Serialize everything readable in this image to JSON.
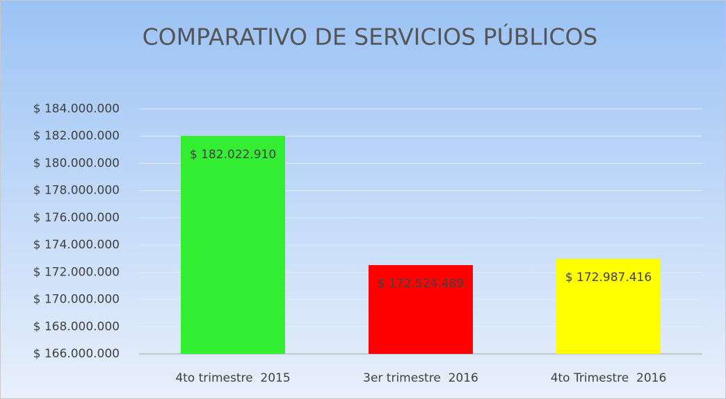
{
  "chart_data": {
    "type": "bar",
    "title": "COMPARATIVO DE SERVICIOS PÚBLICOS",
    "categories": [
      "4to trimestre  2015",
      "3er trimestre  2016",
      "4to Trimestre  2016"
    ],
    "values": [
      182022910,
      172524489,
      172987416
    ],
    "value_labels": [
      "$ 182.022.910",
      "$ 172.524.489",
      "$ 172.987.416"
    ],
    "colors": [
      "#33ee33",
      "#ff0000",
      "#ffff00"
    ],
    "ylim": [
      166000000,
      184000000
    ],
    "yticks": [
      {
        "value": 166000000,
        "label": "$ 166.000.000"
      },
      {
        "value": 168000000,
        "label": "$ 168.000.000"
      },
      {
        "value": 170000000,
        "label": "$ 170.000.000"
      },
      {
        "value": 172000000,
        "label": "$ 172.000.000"
      },
      {
        "value": 174000000,
        "label": "$ 174.000.000"
      },
      {
        "value": 176000000,
        "label": "$ 176.000.000"
      },
      {
        "value": 178000000,
        "label": "$ 178.000.000"
      },
      {
        "value": 180000000,
        "label": "$ 180.000.000"
      },
      {
        "value": 182000000,
        "label": "$ 182.000.000"
      },
      {
        "value": 184000000,
        "label": "$ 184.000.000"
      }
    ],
    "grid": true
  }
}
